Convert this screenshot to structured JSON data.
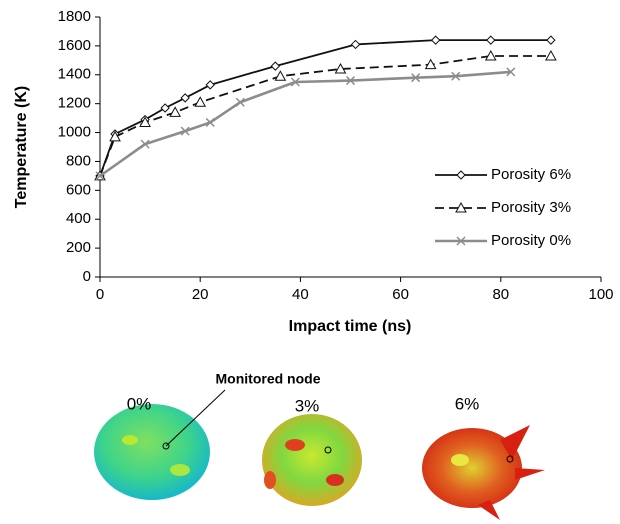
{
  "chart_data": {
    "type": "line",
    "xlabel": "Impact time (ns)",
    "ylabel": "Temperature (K)",
    "xlim": [
      0,
      100
    ],
    "xticks": [
      0,
      20,
      40,
      60,
      80,
      100
    ],
    "ylim": [
      0,
      1800
    ],
    "yticks": [
      0,
      200,
      400,
      600,
      800,
      1000,
      1200,
      1400,
      1600,
      1800
    ],
    "legend": "right",
    "series": [
      {
        "name": "Porosity 6%",
        "color": "#111111",
        "dash": "solid",
        "marker": "diamond",
        "x": [
          0,
          3,
          9,
          13,
          17,
          22,
          35,
          51,
          67,
          78,
          90
        ],
        "values": [
          700,
          990,
          1090,
          1170,
          1240,
          1330,
          1460,
          1610,
          1640,
          1640,
          1640
        ]
      },
      {
        "name": "Porosity 3%",
        "color": "#111111",
        "dash": "dashed",
        "marker": "triangle",
        "x": [
          0,
          3,
          9,
          15,
          20,
          36,
          48,
          66,
          78,
          90
        ],
        "values": [
          700,
          970,
          1070,
          1140,
          1210,
          1390,
          1440,
          1470,
          1530,
          1530
        ]
      },
      {
        "name": "Porosity 0%",
        "color": "#8c8c8c",
        "dash": "solid",
        "marker": "x",
        "x": [
          0,
          9,
          17,
          22,
          28,
          39,
          50,
          63,
          71,
          82
        ],
        "values": [
          700,
          920,
          1010,
          1070,
          1210,
          1350,
          1360,
          1380,
          1390,
          1420
        ]
      }
    ]
  },
  "images": {
    "annotation": "Monitored node",
    "labels": [
      "0%",
      "3%",
      "6%"
    ]
  }
}
